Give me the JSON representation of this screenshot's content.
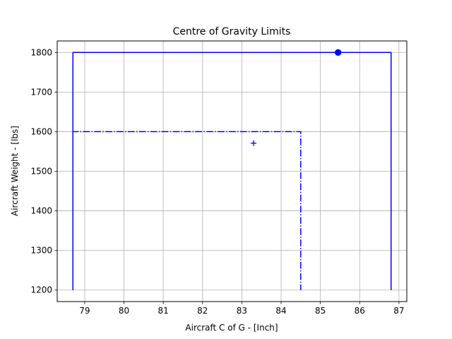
{
  "chart_data": {
    "type": "line",
    "title": "Centre of Gravity Limits",
    "xlabel": "Aircraft C of G - [Inch]",
    "ylabel": "Aircraft Weight - [lbs]",
    "xlim": [
      78.3,
      87.2
    ],
    "ylim": [
      1171,
      1829
    ],
    "xticks": [
      79,
      80,
      81,
      82,
      83,
      84,
      85,
      86,
      87
    ],
    "yticks": [
      1200,
      1300,
      1400,
      1500,
      1600,
      1700,
      1800
    ],
    "xtick_labels": [
      "79",
      "80",
      "81",
      "82",
      "83",
      "84",
      "85",
      "86",
      "87"
    ],
    "ytick_labels": [
      "1200",
      "1300",
      "1400",
      "1500",
      "1600",
      "1700",
      "1800"
    ],
    "grid": true,
    "series": [
      {
        "style": "solid",
        "color": "#0000ff",
        "x": [
          78.7,
          78.7,
          86.8,
          86.8
        ],
        "y": [
          1200,
          1800,
          1800,
          1200
        ]
      },
      {
        "style": "dashdot",
        "color": "#0000ff",
        "x": [
          78.7,
          78.7,
          84.5,
          84.5
        ],
        "y": [
          1200,
          1600,
          1600,
          1200
        ]
      }
    ],
    "points": [
      {
        "marker": "circle",
        "color": "#0000ff",
        "x": 85.45,
        "y": 1800
      },
      {
        "marker": "plus",
        "color": "#0000ff",
        "x": 83.3,
        "y": 1571
      }
    ]
  }
}
